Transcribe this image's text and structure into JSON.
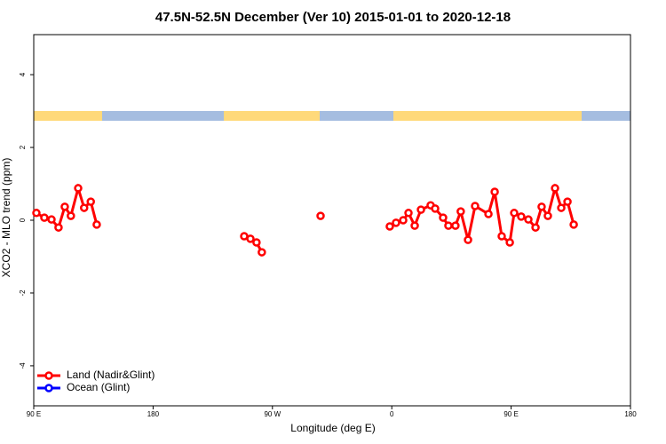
{
  "chart_data": {
    "type": "line",
    "title": "47.5N-52.5N December (Ver 10)   2015-01-01 to 2020-12-18",
    "xlabel": "Longitude (deg E)",
    "ylabel": "XCO2 - MLO trend (ppm)",
    "xlim": [
      90,
      540
    ],
    "ylim": [
      -5.1,
      5.1
    ],
    "xticks": [
      {
        "value": 90,
        "label": "90 E"
      },
      180,
      {
        "value": 270,
        "label": "90 W"
      },
      {
        "value": 360,
        "label": "0"
      },
      {
        "value": 450,
        "label": "90 E"
      },
      {
        "value": 540,
        "label": "180"
      }
    ],
    "yticks": [
      -4,
      -2,
      0,
      2,
      4
    ],
    "legend": "bottom-left",
    "series": [
      {
        "name": "Land (Nadir&Glint)",
        "color": "#ff0000",
        "x": [
          92,
          98,
          103.4,
          108.7,
          113.4,
          118,
          123.5,
          128,
          133,
          137.5,
          null,
          248.7,
          253.4,
          258,
          262,
          null,
          306.3,
          null,
          358.5,
          363.2,
          368.6,
          372.6,
          377.3,
          382,
          389.3,
          392.7,
          398.7,
          402.7,
          408,
          412,
          417.5,
          422.8,
          432.9,
          437.6,
          442.9,
          449,
          452.3,
          457.6,
          463,
          468.4,
          473,
          477.7,
          483.1,
          487.8,
          492.5,
          497.2
        ],
        "values": [
          0.2,
          0.07,
          0.02,
          -0.2,
          0.37,
          0.12,
          0.88,
          0.34,
          0.51,
          -0.12,
          null,
          -0.44,
          -0.51,
          -0.61,
          -0.88,
          null,
          0.12,
          null,
          -0.17,
          -0.07,
          0.0,
          0.2,
          -0.15,
          0.29,
          0.41,
          0.32,
          0.07,
          -0.15,
          -0.15,
          0.24,
          -0.54,
          0.39,
          0.17,
          0.78,
          -0.44,
          -0.61,
          0.2,
          0.1,
          0.02,
          -0.2,
          0.37,
          0.12,
          0.88,
          0.34,
          0.51,
          -0.12
        ]
      },
      {
        "name": "Ocean (Glint)",
        "color": "#0000ff",
        "x": [],
        "values": []
      }
    ]
  }
}
